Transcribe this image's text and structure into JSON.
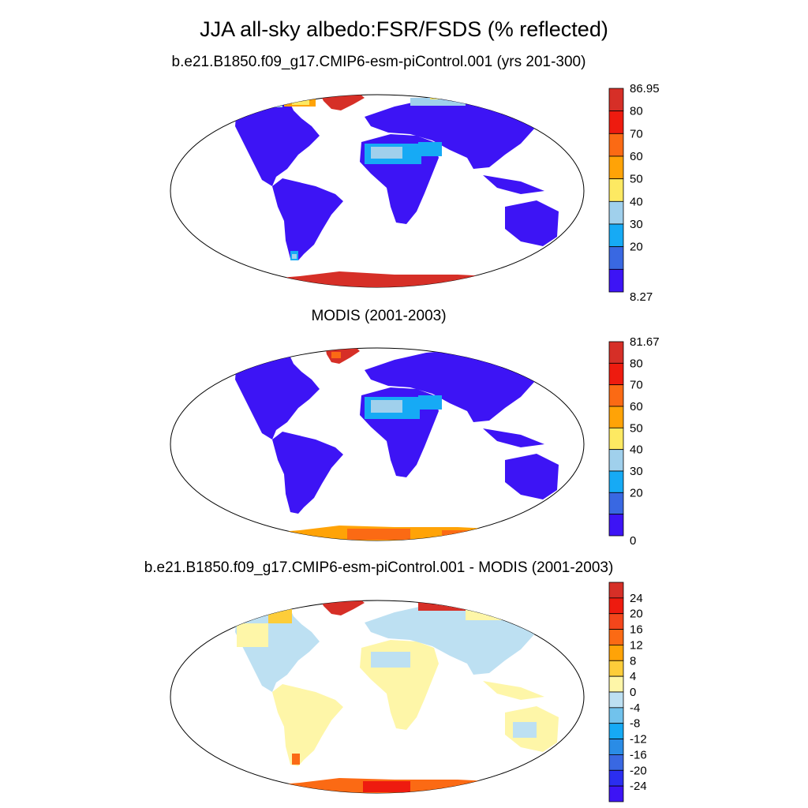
{
  "figure": {
    "title": "JJA all-sky albedo:FSR/FSDS (% reflected)",
    "panels": [
      {
        "title": "b.e21.B1850.f09_g17.CMIP6-esm-piControl.001 (yrs 201-300)",
        "colorbar": {
          "labels": [
            "86.95",
            "80",
            "70",
            "60",
            "50",
            "40",
            "30",
            "20",
            "8.27"
          ],
          "colors": [
            "#d62f27",
            "#ee1b0f",
            "#fb6a14",
            "#ffa307",
            "#fde962",
            "#a0d0ec",
            "#16aaf5",
            "#3968e2",
            "#3d14f5"
          ]
        }
      },
      {
        "title": "MODIS (2001-2003)",
        "colorbar": {
          "labels": [
            "81.67",
            "80",
            "70",
            "60",
            "50",
            "40",
            "30",
            "20",
            "0"
          ],
          "colors": [
            "#d62f27",
            "#ee1b0f",
            "#fb6a14",
            "#ffa307",
            "#fde962",
            "#a0d0ec",
            "#16aaf5",
            "#3968e2",
            "#3d14f5"
          ]
        }
      },
      {
        "title": "b.e21.B1850.f09_g17.CMIP6-esm-piControl.001 - MODIS (2001-2003)",
        "colorbar": {
          "labels": [
            "24",
            "20",
            "16",
            "12",
            "8",
            "4",
            "0",
            "-4",
            "-8",
            "-12",
            "-16",
            "-20",
            "-24"
          ],
          "colors": [
            "#d62f27",
            "#ee1b0f",
            "#f4461b",
            "#fb6a14",
            "#ffa307",
            "#fdcd3a",
            "#fef6a8",
            "#bde0f2",
            "#71c2ec",
            "#16aaf5",
            "#2a8ce6",
            "#3968e2",
            "#2b2ef0",
            "#3d14f5"
          ]
        }
      }
    ]
  }
}
